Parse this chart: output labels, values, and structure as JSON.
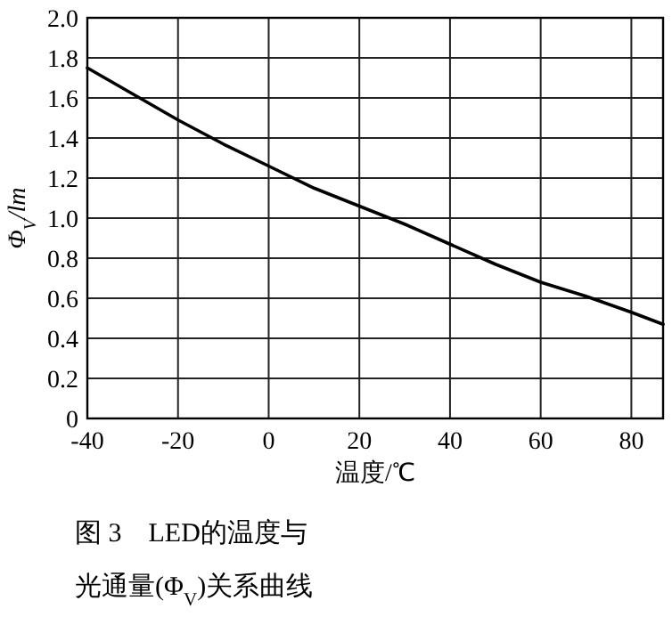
{
  "chart_data": {
    "type": "line",
    "xlabel": "温度/℃",
    "ylabel": "Φ$_{V}$/lm",
    "x": [
      -40,
      -30,
      -20,
      -10,
      0,
      10,
      20,
      30,
      40,
      50,
      60,
      70,
      80,
      87
    ],
    "values": [
      1.75,
      1.62,
      1.49,
      1.37,
      1.26,
      1.15,
      1.06,
      0.97,
      0.87,
      0.77,
      0.68,
      0.61,
      0.53,
      0.47
    ],
    "color": "#000000",
    "xlim": [
      -40,
      87
    ],
    "ylim": [
      0,
      2.0
    ],
    "xticks": [
      -40,
      -20,
      0,
      20,
      40,
      60,
      80
    ],
    "yticks": [
      0,
      {
        "value": 0.2,
        "label": "0.2"
      },
      {
        "value": 0.4,
        "label": "0.4"
      },
      {
        "value": 0.6,
        "label": "0.6"
      },
      {
        "value": 0.8,
        "label": "0.8"
      },
      {
        "value": 1.0,
        "label": "1.0"
      },
      {
        "value": 1.2,
        "label": "1.2"
      },
      {
        "value": 1.4,
        "label": "1.4"
      },
      {
        "value": 1.6,
        "label": "1.6"
      },
      {
        "value": 1.8,
        "label": "1.8"
      },
      {
        "value": 2.0,
        "label": "2.0"
      }
    ],
    "grid": true,
    "annotations": [
      "图 3　LED的温度与",
      "光通量(Φ$_{V}$)关系曲线"
    ]
  }
}
